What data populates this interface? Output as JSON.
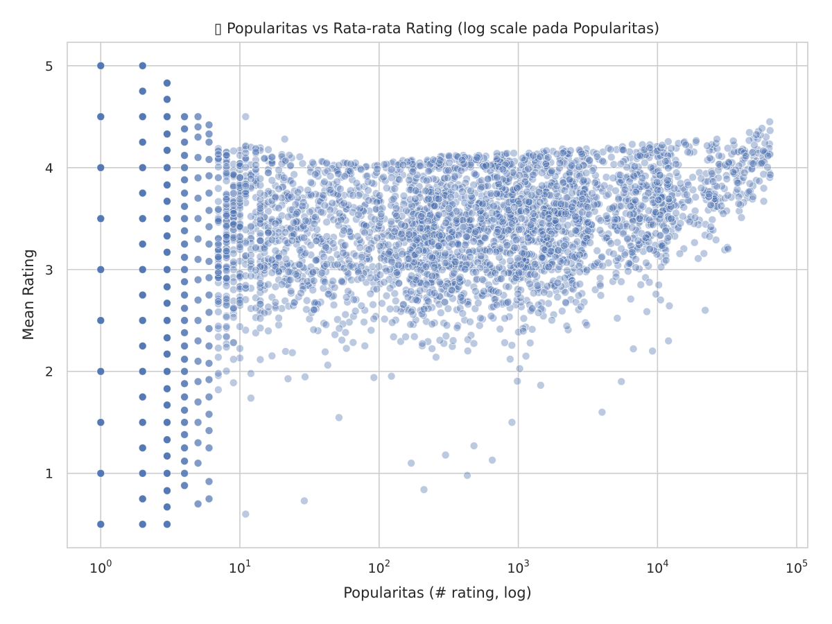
{
  "chart_data": {
    "type": "scatter",
    "title": "▯ Popularitas vs Rata-rata Rating (log scale pada Popularitas)",
    "xlabel": "Popularitas (# rating, log)",
    "ylabel": "Mean Rating",
    "x_scale": "log",
    "xlim": [
      0.575,
      120000
    ],
    "ylim": [
      0.27,
      5.23
    ],
    "x_ticks": [
      {
        "value": 1,
        "base": "10",
        "exp": "0"
      },
      {
        "value": 10,
        "base": "10",
        "exp": "1"
      },
      {
        "value": 100,
        "base": "10",
        "exp": "2"
      },
      {
        "value": 1000,
        "base": "10",
        "exp": "3"
      },
      {
        "value": 10000,
        "base": "10",
        "exp": "4"
      },
      {
        "value": 100000,
        "base": "10",
        "exp": "5"
      }
    ],
    "y_ticks": [
      "1",
      "2",
      "3",
      "4",
      "5"
    ],
    "grid": true,
    "marker_color": "#4c72b0",
    "marker_edge_color": "#ffffff",
    "style": "seaborn whitegrid",
    "discrete_columns": [
      {
        "x": 1,
        "y": [
          0.5,
          1,
          1.5,
          2,
          2.5,
          3,
          3.5,
          4,
          4.5,
          5
        ]
      },
      {
        "x": 2,
        "y": [
          0.5,
          0.75,
          1,
          1.25,
          1.5,
          1.75,
          2,
          2.25,
          2.5,
          2.75,
          3,
          3.25,
          3.5,
          3.75,
          4,
          4.25,
          4.5,
          4.75,
          5
        ]
      },
      {
        "x": 3,
        "y": [
          0.5,
          0.67,
          0.83,
          1,
          1.17,
          1.33,
          1.5,
          1.67,
          1.83,
          2,
          2.17,
          2.33,
          2.5,
          2.67,
          2.83,
          3,
          3.17,
          3.33,
          3.5,
          3.67,
          3.83,
          4,
          4.17,
          4.33,
          4.5,
          4.67,
          4.83
        ]
      },
      {
        "x": 4,
        "y": [
          0.88,
          1,
          1.12,
          1.25,
          1.38,
          1.5,
          1.62,
          1.75,
          1.88,
          2,
          2.12,
          2.25,
          2.38,
          2.5,
          2.62,
          2.75,
          2.88,
          3,
          3.12,
          3.25,
          3.38,
          3.5,
          3.62,
          3.75,
          3.88,
          4,
          4.12,
          4.25,
          4.38,
          4.5
        ]
      },
      {
        "x": 5,
        "y": [
          0.7,
          1.1,
          1.3,
          1.5,
          1.7,
          1.9,
          2.1,
          2.3,
          2.5,
          2.7,
          2.9,
          3.1,
          3.3,
          3.5,
          3.7,
          3.9,
          4.1,
          4.3,
          4.4,
          4.5
        ]
      },
      {
        "x": 6,
        "y": [
          0.75,
          0.92,
          1.25,
          1.42,
          1.58,
          1.75,
          1.92,
          2.08,
          2.25,
          2.42,
          2.58,
          2.75,
          2.92,
          3.08,
          3.25,
          3.42,
          3.58,
          3.75,
          3.92,
          4.08,
          4.25,
          4.33,
          4.42
        ]
      }
    ],
    "cloud_envelope": [
      {
        "x": 7,
        "y_low": 1.15,
        "y_high": 4.2
      },
      {
        "x": 10,
        "y_low": 1.35,
        "y_high": 4.25
      },
      {
        "x": 30,
        "y_low": 1.5,
        "y_high": 4.1
      },
      {
        "x": 100,
        "y_low": 1.6,
        "y_high": 4.05
      },
      {
        "x": 300,
        "y_low": 1.6,
        "y_high": 4.12
      },
      {
        "x": 1000,
        "y_low": 1.7,
        "y_high": 4.15
      },
      {
        "x": 3000,
        "y_low": 1.85,
        "y_high": 4.2
      },
      {
        "x": 10000,
        "y_low": 2.2,
        "y_high": 4.25
      },
      {
        "x": 30000,
        "y_low": 2.8,
        "y_high": 4.3
      },
      {
        "x": 65000,
        "y_low": 3.6,
        "y_high": 4.45
      }
    ],
    "outliers": [
      {
        "x": 11,
        "y": 0.6
      },
      {
        "x": 29,
        "y": 0.73
      },
      {
        "x": 210,
        "y": 0.84
      },
      {
        "x": 430,
        "y": 0.98
      },
      {
        "x": 11,
        "y": 4.5
      },
      {
        "x": 21,
        "y": 4.28
      },
      {
        "x": 4000,
        "y": 1.6
      },
      {
        "x": 12000,
        "y": 2.3
      },
      {
        "x": 9200,
        "y": 2.2
      },
      {
        "x": 5500,
        "y": 1.9
      },
      {
        "x": 64000,
        "y": 4.45
      },
      {
        "x": 58000,
        "y": 3.67
      },
      {
        "x": 650,
        "y": 1.13
      },
      {
        "x": 170,
        "y": 1.1
      },
      {
        "x": 900,
        "y": 1.5
      },
      {
        "x": 300,
        "y": 1.18
      },
      {
        "x": 480,
        "y": 1.27
      },
      {
        "x": 22000,
        "y": 2.6
      }
    ]
  }
}
